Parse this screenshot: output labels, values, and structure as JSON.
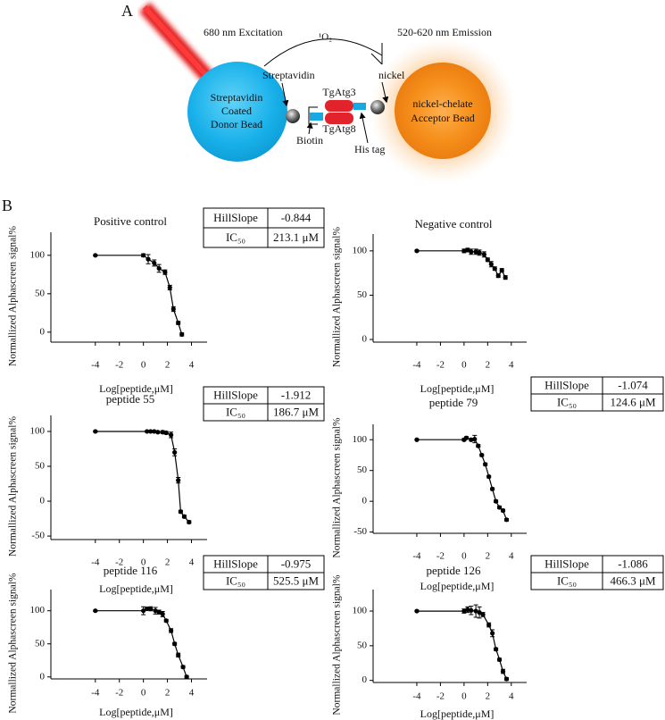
{
  "panel_labels": [
    "A",
    "B"
  ],
  "diagram": {
    "excitation": "680 nm Excitation",
    "singlet_oxygen": "¹O₂",
    "emission": "520-620 nm Emission",
    "streptavidin": "Streptavidin",
    "donor_bead": [
      "Streptavidin",
      "Coated",
      "Donor Bead"
    ],
    "protein_a": "TgAtg3",
    "protein_b": "TgAtg8",
    "biotin": "Biotin",
    "his_tag": "His tag",
    "nickel": "nickel",
    "acceptor_bead": [
      "nickel-chelate",
      "Acceptor Bead"
    ]
  },
  "chart_data": [
    {
      "type": "line",
      "title": "Positive control",
      "xlabel": "Log[peptide,μM]",
      "ylabel": "Normallized Alphascreen signal%",
      "color": "#000000",
      "x": [
        -4,
        0,
        0.4,
        0.9,
        1.3,
        1.8,
        2.2,
        2.5,
        2.9,
        3.2
      ],
      "values": [
        100,
        100,
        95,
        90,
        83,
        78,
        58,
        30,
        12,
        -3
      ],
      "errors": [
        1,
        2,
        6,
        4,
        5,
        3,
        3,
        3,
        2,
        2
      ],
      "xlim": [
        -7.7,
        5.3
      ],
      "ylim": [
        -13,
        130
      ],
      "xticks": [
        -4,
        -2,
        0,
        2,
        4
      ],
      "yticks": [
        0,
        50,
        100
      ],
      "table": {
        "rows": [
          [
            "HillSlope",
            "-0.844"
          ],
          [
            "IC₅₀",
            "213.1 μM"
          ]
        ]
      }
    },
    {
      "type": "line",
      "title": "Negative control",
      "xlabel": "Log[peptide,μM]",
      "ylabel": "Normallized Alphascreen signal%",
      "color": "#000000",
      "x": [
        -4,
        0,
        0.3,
        0.6,
        1,
        1.3,
        1.7,
        2,
        2.3,
        2.6,
        2.9,
        3.2,
        3.5
      ],
      "values": [
        100,
        100,
        101,
        99,
        99,
        98,
        96,
        90,
        85,
        80,
        72,
        78,
        70
      ],
      "errors": [
        1,
        2,
        2,
        3,
        3,
        3,
        3,
        2,
        3,
        2,
        2,
        2,
        2
      ],
      "xlim": [
        -7.7,
        5.3
      ],
      "ylim": [
        -3,
        119
      ],
      "xticks": [
        -4,
        -2,
        0,
        2,
        4
      ],
      "yticks": [
        0,
        50,
        100
      ]
    },
    {
      "type": "line",
      "title": "peptide 55",
      "xlabel": "Log[peptide,μM]",
      "ylabel": "Normallized Alphascreen signal%",
      "color": "#000000",
      "x": [
        -4,
        0.3,
        0.6,
        0.9,
        1.2,
        1.6,
        1.9,
        2.3,
        2.6,
        2.9,
        3.1,
        3.4,
        3.8
      ],
      "values": [
        100,
        100,
        100,
        100,
        99,
        99,
        98,
        95,
        70,
        30,
        -15,
        -22,
        -30
      ],
      "errors": [
        1,
        1,
        1,
        1,
        1,
        2,
        2,
        4,
        5,
        4,
        2,
        2,
        2
      ],
      "xlim": [
        -7.7,
        5.3
      ],
      "ylim": [
        -55,
        123
      ],
      "xticks": [
        -4,
        -2,
        0,
        2,
        4
      ],
      "yticks": [
        -50,
        0,
        50,
        100
      ],
      "table": {
        "rows": [
          [
            "HillSlope",
            "-1.912"
          ],
          [
            "IC₅₀",
            "186.7 μM"
          ]
        ]
      }
    },
    {
      "type": "line",
      "title": "peptide 79",
      "xlabel": "Log[peptide,μM]",
      "ylabel": "Normallized Alphascreen signal%",
      "color": "#000000",
      "x": [
        -4,
        0,
        0.2,
        0.6,
        0.9,
        1.2,
        1.5,
        1.8,
        2.1,
        2.4,
        2.7,
        3,
        3.3,
        3.6
      ],
      "values": [
        100,
        100,
        103,
        100,
        101,
        90,
        75,
        60,
        40,
        20,
        0,
        -10,
        -15,
        -30
      ],
      "errors": [
        1,
        2,
        2,
        2,
        6,
        2,
        2,
        2,
        2,
        2,
        2,
        2,
        2,
        2
      ],
      "xlim": [
        -7.7,
        5.3
      ],
      "ylim": [
        -52,
        125
      ],
      "xticks": [
        -4,
        -2,
        0,
        2,
        4
      ],
      "yticks": [
        -50,
        0,
        50,
        100
      ],
      "table": {
        "rows": [
          [
            "HillSlope",
            "-1.074"
          ],
          [
            "IC₅₀",
            "124.6 μM"
          ]
        ]
      }
    },
    {
      "type": "line",
      "title": "peptide 116",
      "xlabel": "Log[peptide,μM]",
      "ylabel": "Normallized Alphascreen signal%",
      "color": "#000000",
      "x": [
        -4,
        0,
        0.3,
        0.6,
        1,
        1.3,
        1.6,
        1.9,
        2.3,
        2.6,
        2.9,
        3.3,
        3.6
      ],
      "values": [
        100,
        100,
        103,
        103,
        100,
        98,
        95,
        85,
        70,
        50,
        33,
        15,
        0
      ],
      "errors": [
        1,
        6,
        2,
        3,
        5,
        3,
        4,
        2,
        3,
        2,
        3,
        2,
        2
      ],
      "xlim": [
        -7.7,
        5.3
      ],
      "ylim": [
        -3,
        132
      ],
      "xticks": [
        -4,
        -2,
        0,
        2,
        4
      ],
      "yticks": [
        0,
        50,
        100
      ],
      "table": {
        "rows": [
          [
            "HillSlope",
            "-0.975"
          ],
          [
            "IC₅₀",
            "525.5 μM"
          ]
        ]
      }
    },
    {
      "type": "line",
      "title": "peptide 126",
      "xlabel": "Log[peptide,μM]",
      "ylabel": "Normallized Alphascreen signal%",
      "color": "#000000",
      "x": [
        -4,
        0,
        0.3,
        0.6,
        1,
        1.3,
        1.6,
        2.1,
        2.4,
        2.7,
        3,
        3.3,
        3.6
      ],
      "values": [
        100,
        100,
        102,
        101,
        100,
        98,
        95,
        80,
        68,
        45,
        30,
        13,
        2
      ],
      "errors": [
        1,
        3,
        4,
        6,
        9,
        8,
        3,
        3,
        5,
        2,
        2,
        3,
        2
      ],
      "xlim": [
        -7.7,
        5.3
      ],
      "ylim": [
        -3,
        131
      ],
      "xticks": [
        -4,
        -2,
        0,
        2,
        4
      ],
      "yticks": [
        0,
        50,
        100
      ],
      "table": {
        "rows": [
          [
            "HillSlope",
            "-1.086"
          ],
          [
            "IC₅₀",
            "466.3 μM"
          ]
        ]
      }
    }
  ]
}
